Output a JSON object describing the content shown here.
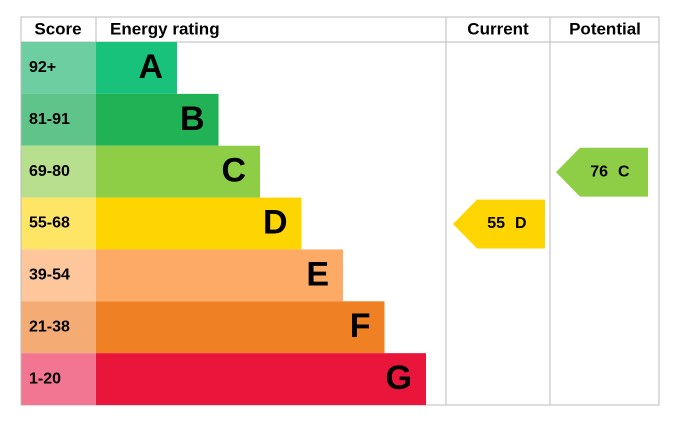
{
  "header": {
    "score": "Score",
    "rating": "Energy rating",
    "current": "Current",
    "potential": "Potential"
  },
  "bands": [
    {
      "score": "92+",
      "letter": "A",
      "color": "#19c27a",
      "light": "#6dcea2"
    },
    {
      "score": "81-91",
      "letter": "B",
      "color": "#22b256",
      "light": "#5ec489"
    },
    {
      "score": "69-80",
      "letter": "C",
      "color": "#8dce46",
      "light": "#b7df8d"
    },
    {
      "score": "55-68",
      "letter": "D",
      "color": "#ffd500",
      "light": "#ffe566"
    },
    {
      "score": "39-54",
      "letter": "E",
      "color": "#fcaa65",
      "light": "#fdc79b"
    },
    {
      "score": "21-38",
      "letter": "F",
      "color": "#ef8023",
      "light": "#f5ac74"
    },
    {
      "score": "1-20",
      "letter": "G",
      "color": "#e9153b",
      "light": "#f27691"
    }
  ],
  "current": {
    "value": 55,
    "letter": "D"
  },
  "potential": {
    "value": 76,
    "letter": "C"
  }
}
